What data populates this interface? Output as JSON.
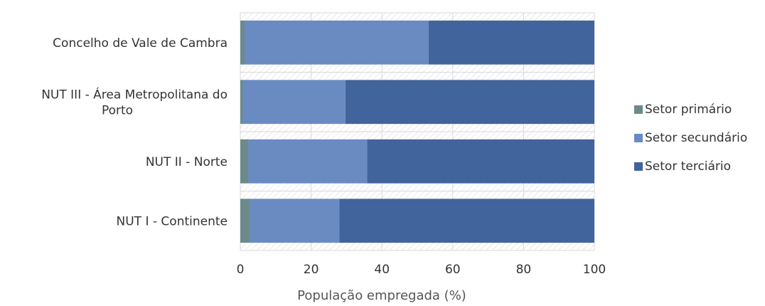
{
  "chart_data": {
    "type": "bar",
    "orientation": "horizontal",
    "stacked": true,
    "categories": [
      [
        "Concelho de Vale de Cambra"
      ],
      [
        "NUT III - Área Metropolitana do",
        "Porto"
      ],
      [
        "NUT II - Norte"
      ],
      [
        "NUT I - Continente"
      ]
    ],
    "series": [
      {
        "name": "Setor primário",
        "color": "#6b8a8c",
        "values": [
          1.2,
          0.7,
          2.3,
          2.8
        ]
      },
      {
        "name": "Setor secundário",
        "color": "#6a8ac2",
        "values": [
          52.0,
          29.0,
          33.5,
          25.2
        ]
      },
      {
        "name": "Setor terciário",
        "color": "#42649d",
        "values": [
          46.8,
          70.3,
          64.2,
          72.0
        ]
      }
    ],
    "xlabel": "População empregada (%)",
    "ylabel": "",
    "xlim": [
      0,
      100
    ],
    "xticks": [
      0,
      20,
      40,
      60,
      80,
      100
    ],
    "grid": true,
    "legend_position": "right"
  }
}
